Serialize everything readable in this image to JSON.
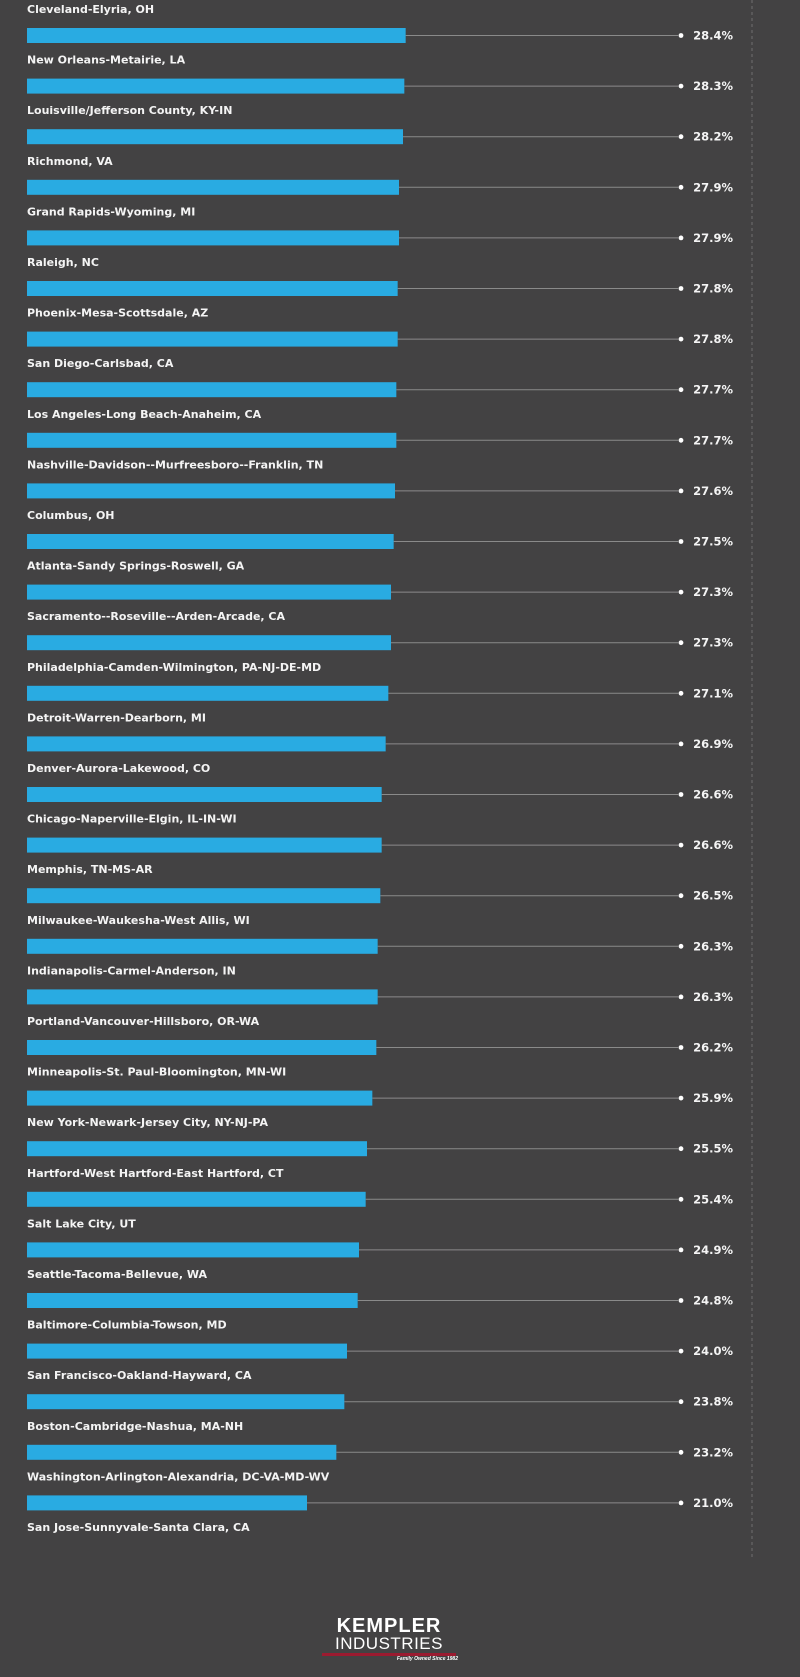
{
  "chart_data": {
    "type": "bar",
    "orientation": "horizontal",
    "value_suffix": "%",
    "xlim": [
      0,
      45
    ],
    "colors": {
      "bar": "#29abe2",
      "background": "#434243",
      "leader_line": "#8a8a8a",
      "text": "#f4f4f4"
    },
    "items": [
      {
        "label": "Cleveland-Elyria, OH",
        "value": 28.4
      },
      {
        "label": "New Orleans-Metairie, LA",
        "value": 28.3
      },
      {
        "label": "Louisville/Jefferson County, KY-IN",
        "value": 28.2
      },
      {
        "label": "Richmond, VA",
        "value": 27.9
      },
      {
        "label": "Grand Rapids-Wyoming, MI",
        "value": 27.9
      },
      {
        "label": "Raleigh, NC",
        "value": 27.8
      },
      {
        "label": "Phoenix-Mesa-Scottsdale, AZ",
        "value": 27.8
      },
      {
        "label": "San Diego-Carlsbad, CA",
        "value": 27.7
      },
      {
        "label": "Los Angeles-Long Beach-Anaheim, CA",
        "value": 27.7
      },
      {
        "label": "Nashville-Davidson--Murfreesboro--Franklin, TN",
        "value": 27.6
      },
      {
        "label": "Columbus, OH",
        "value": 27.5
      },
      {
        "label": "Atlanta-Sandy Springs-Roswell, GA",
        "value": 27.3
      },
      {
        "label": "Sacramento--Roseville--Arden-Arcade, CA",
        "value": 27.3
      },
      {
        "label": "Philadelphia-Camden-Wilmington, PA-NJ-DE-MD",
        "value": 27.1
      },
      {
        "label": "Detroit-Warren-Dearborn, MI",
        "value": 26.9
      },
      {
        "label": "Denver-Aurora-Lakewood, CO",
        "value": 26.6
      },
      {
        "label": "Chicago-Naperville-Elgin, IL-IN-WI",
        "value": 26.6
      },
      {
        "label": "Memphis, TN-MS-AR",
        "value": 26.5
      },
      {
        "label": "Milwaukee-Waukesha-West Allis, WI",
        "value": 26.3
      },
      {
        "label": "Indianapolis-Carmel-Anderson, IN",
        "value": 26.3
      },
      {
        "label": "Portland-Vancouver-Hillsboro, OR-WA",
        "value": 26.2
      },
      {
        "label": "Minneapolis-St. Paul-Bloomington, MN-WI",
        "value": 25.9
      },
      {
        "label": "New York-Newark-Jersey City, NY-NJ-PA",
        "value": 25.5
      },
      {
        "label": "Hartford-West Hartford-East Hartford, CT",
        "value": 25.4
      },
      {
        "label": "Salt Lake City, UT",
        "value": 24.9
      },
      {
        "label": "Seattle-Tacoma-Bellevue, WA",
        "value": 24.8
      },
      {
        "label": "Baltimore-Columbia-Towson, MD",
        "value": 24.0
      },
      {
        "label": "San Francisco-Oakland-Hayward, CA",
        "value": 23.8
      },
      {
        "label": "Boston-Cambridge-Nashua, MA-NH",
        "value": 23.2
      },
      {
        "label": "Washington-Arlington-Alexandria, DC-VA-MD-WV",
        "value": 21.0
      }
    ],
    "trailing_label": "San Jose-Sunnyvale-Santa Clara, CA"
  },
  "brand": {
    "name": "KEMPLER",
    "sub": "INDUSTRIES",
    "tagline": "Family Owned Since 1982",
    "accent_color": "#9b1b30"
  }
}
